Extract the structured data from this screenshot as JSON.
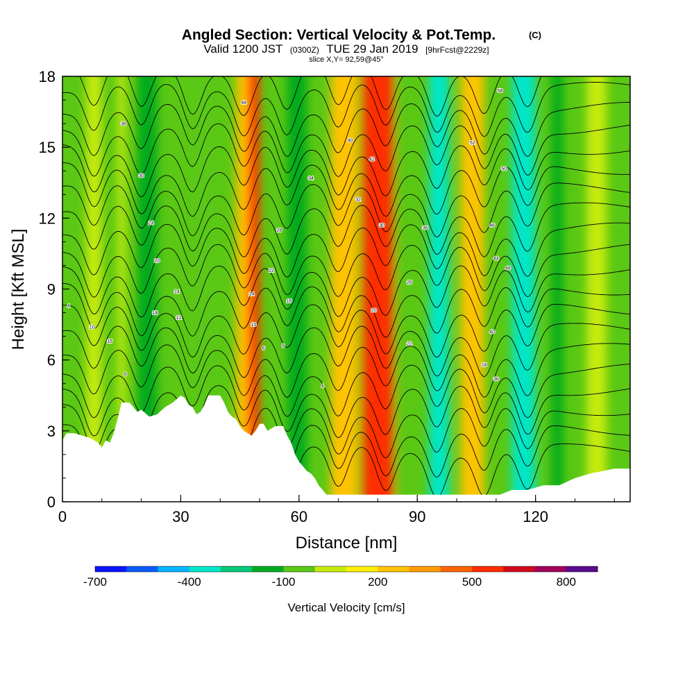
{
  "chart_data": {
    "type": "heatmap",
    "title": "Angled Section: Vertical Velocity & Pot.Temp.",
    "title_units": "(C)",
    "subtitle_valid": "Valid 1200 JST",
    "subtitle_zulu": "(0300Z)",
    "subtitle_date": "TUE 29 Jan 2019",
    "subtitle_fcst": "[9hrFcst@2229z]",
    "subtitle_slice": "slice X,Y= 92,59@45°",
    "xlabel": "Distance [nm]",
    "ylabel": "Height [Kft MSL]",
    "xlim": [
      0,
      144
    ],
    "ylim": [
      0,
      18
    ],
    "x_ticks": [
      "0",
      "30",
      "60",
      "90",
      "120"
    ],
    "x_tick_values": [
      0,
      30,
      60,
      90,
      120
    ],
    "y_ticks": [
      "0",
      "3",
      "6",
      "9",
      "12",
      "15",
      "18"
    ],
    "y_tick_values": [
      0,
      3,
      6,
      9,
      12,
      15,
      18
    ],
    "colorbar": {
      "label": "Vertical Velocity [cm/s]",
      "range": [
        -700,
        900
      ],
      "tick_labels": [
        "-700",
        "-400",
        "-100",
        "200",
        "500",
        "800"
      ],
      "tick_values": [
        -700,
        -400,
        -100,
        200,
        500,
        800
      ],
      "colors": [
        "#0a14ff",
        "#0a5aff",
        "#00b4ff",
        "#00e6c8",
        "#00c878",
        "#00aa1e",
        "#5ac814",
        "#c8eb0a",
        "#fff000",
        "#ffc300",
        "#ff9b00",
        "#ff6400",
        "#ff2d00",
        "#d20a1e",
        "#a0005a",
        "#5a0a8c"
      ]
    },
    "background_color": "#5ac814",
    "bands": [
      {
        "x": 6,
        "w": 4,
        "value": 50
      },
      {
        "x": 14,
        "w": 2,
        "value": 50
      },
      {
        "x": 19,
        "w": 5,
        "value": -200
      },
      {
        "x": 33,
        "w": 6,
        "value": -50
      },
      {
        "x": 44,
        "w": 4,
        "value": 200
      },
      {
        "x": 47,
        "w": 3,
        "value": 500
      },
      {
        "x": 57,
        "w": 5,
        "value": -200
      },
      {
        "x": 68,
        "w": 7,
        "value": 200
      },
      {
        "x": 76,
        "w": 8,
        "value": 500
      },
      {
        "x": 85,
        "w": 3,
        "value": -100
      },
      {
        "x": 93,
        "w": 5,
        "value": -400
      },
      {
        "x": 101,
        "w": 6,
        "value": 200
      },
      {
        "x": 114,
        "w": 6,
        "value": -400
      },
      {
        "x": 124,
        "w": 3,
        "value": -200
      },
      {
        "x": 133,
        "w": 5,
        "value": 50
      }
    ],
    "terrain_profile": [
      [
        0,
        2.6
      ],
      [
        1,
        2.9
      ],
      [
        3,
        2.9
      ],
      [
        5,
        2.8
      ],
      [
        7,
        2.7
      ],
      [
        9,
        2.5
      ],
      [
        10,
        2.3
      ],
      [
        11,
        2.6
      ],
      [
        12,
        2.5
      ],
      [
        13,
        2.9
      ],
      [
        14,
        3.5
      ],
      [
        15,
        4.2
      ],
      [
        17,
        4.2
      ],
      [
        18,
        4.0
      ],
      [
        19,
        3.8
      ],
      [
        20,
        3.9
      ],
      [
        22,
        3.6
      ],
      [
        24,
        3.7
      ],
      [
        26,
        4.0
      ],
      [
        28,
        4.2
      ],
      [
        30,
        4.5
      ],
      [
        31,
        4.4
      ],
      [
        32,
        4.1
      ],
      [
        33,
        4.0
      ],
      [
        34,
        3.7
      ],
      [
        35,
        3.8
      ],
      [
        36,
        4.1
      ],
      [
        37,
        4.5
      ],
      [
        40,
        4.5
      ],
      [
        41,
        4.2
      ],
      [
        42,
        3.8
      ],
      [
        43,
        3.6
      ],
      [
        44,
        3.5
      ],
      [
        45,
        3.2
      ],
      [
        46,
        3.0
      ],
      [
        47,
        2.9
      ],
      [
        48,
        2.8
      ],
      [
        49,
        3.0
      ],
      [
        50,
        3.3
      ],
      [
        51,
        3.3
      ],
      [
        52,
        3.0
      ],
      [
        54,
        3.2
      ],
      [
        56,
        3.2
      ],
      [
        57,
        2.8
      ],
      [
        58,
        2.5
      ],
      [
        59,
        2.0
      ],
      [
        60,
        1.7
      ],
      [
        61,
        1.5
      ],
      [
        62,
        1.3
      ],
      [
        63,
        1.2
      ],
      [
        64,
        1.0
      ],
      [
        65,
        0.7
      ],
      [
        66,
        0.5
      ],
      [
        67,
        0.3
      ],
      [
        69,
        0.3
      ],
      [
        72,
        0.3
      ],
      [
        80,
        0.3
      ],
      [
        90,
        0.3
      ],
      [
        100,
        0.3
      ],
      [
        108,
        0.3
      ],
      [
        111,
        0.3
      ],
      [
        114,
        0.5
      ],
      [
        118,
        0.5
      ],
      [
        122,
        0.7
      ],
      [
        126,
        0.7
      ],
      [
        130,
        1.0
      ],
      [
        134,
        1.2
      ],
      [
        137,
        1.3
      ],
      [
        140,
        1.4
      ],
      [
        144,
        1.4
      ]
    ],
    "theta_contours": {
      "interval_c": 2,
      "count": 20,
      "amplitude_kft": 1.8,
      "ridges": [
        8,
        20,
        33,
        46,
        57,
        70,
        82,
        95,
        107,
        118
      ]
    },
    "contour_labels": [
      {
        "x": 1.5,
        "y": 8.3,
        "text": "4"
      },
      {
        "x": 7.5,
        "y": 7.4,
        "text": "10"
      },
      {
        "x": 12,
        "y": 6.8,
        "text": "16"
      },
      {
        "x": 16,
        "y": 5.4,
        "text": "8"
      },
      {
        "x": 15.5,
        "y": 16.0,
        "text": "38"
      },
      {
        "x": 20,
        "y": 13.8,
        "text": "30"
      },
      {
        "x": 22.5,
        "y": 11.8,
        "text": "24"
      },
      {
        "x": 24,
        "y": 10.2,
        "text": "20"
      },
      {
        "x": 23.5,
        "y": 8.0,
        "text": "18"
      },
      {
        "x": 29,
        "y": 8.9,
        "text": "14"
      },
      {
        "x": 29.5,
        "y": 7.8,
        "text": "12"
      },
      {
        "x": 46,
        "y": 16.9,
        "text": "44"
      },
      {
        "x": 48,
        "y": 8.8,
        "text": "14"
      },
      {
        "x": 48.5,
        "y": 7.5,
        "text": "10"
      },
      {
        "x": 51,
        "y": 6.5,
        "text": "6"
      },
      {
        "x": 53,
        "y": 9.8,
        "text": "22"
      },
      {
        "x": 55,
        "y": 11.5,
        "text": "28"
      },
      {
        "x": 57.5,
        "y": 8.5,
        "text": "16"
      },
      {
        "x": 56,
        "y": 6.6,
        "text": "8"
      },
      {
        "x": 63,
        "y": 13.7,
        "text": "34"
      },
      {
        "x": 66,
        "y": 4.9,
        "text": "4"
      },
      {
        "x": 73,
        "y": 15.3,
        "text": "40"
      },
      {
        "x": 75,
        "y": 12.8,
        "text": "32"
      },
      {
        "x": 78.5,
        "y": 14.5,
        "text": "42"
      },
      {
        "x": 79,
        "y": 8.1,
        "text": "20"
      },
      {
        "x": 81,
        "y": 11.7,
        "text": "30"
      },
      {
        "x": 88,
        "y": 9.3,
        "text": "26"
      },
      {
        "x": 88,
        "y": 6.7,
        "text": "22"
      },
      {
        "x": 92,
        "y": 11.6,
        "text": "36"
      },
      {
        "x": 104,
        "y": 15.2,
        "text": "52"
      },
      {
        "x": 107,
        "y": 5.8,
        "text": "18"
      },
      {
        "x": 109,
        "y": 11.7,
        "text": "46"
      },
      {
        "x": 110,
        "y": 10.3,
        "text": "44"
      },
      {
        "x": 109,
        "y": 7.2,
        "text": "40"
      },
      {
        "x": 110,
        "y": 5.2,
        "text": "36"
      },
      {
        "x": 112,
        "y": 14.1,
        "text": "50"
      },
      {
        "x": 113,
        "y": 9.9,
        "text": "48"
      },
      {
        "x": 111,
        "y": 17.4,
        "text": "58"
      }
    ]
  }
}
